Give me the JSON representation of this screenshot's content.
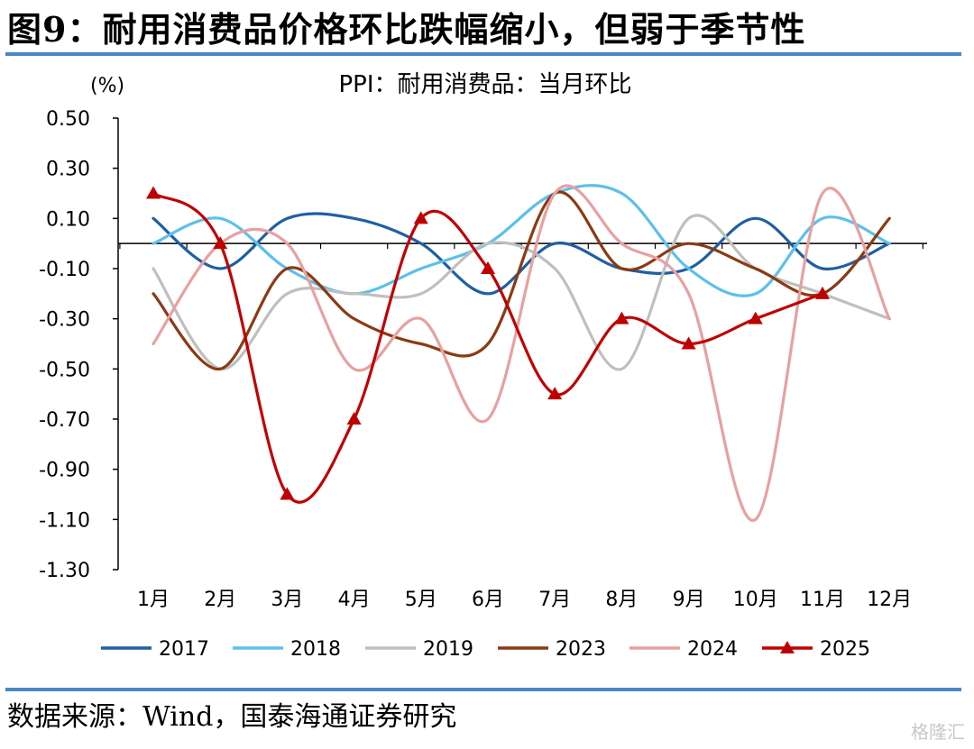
{
  "header": {
    "figure_title": "图9：耐用消费品价格环比跌幅缩小，但弱于季节性"
  },
  "footer": {
    "source": "数据来源：Wind，国泰海通证券研究",
    "watermark": "格隆汇"
  },
  "chart_data": {
    "type": "line",
    "title": "PPI：耐用消费品：当月环比",
    "unit_label": "(%)",
    "categories": [
      "1月",
      "2月",
      "3月",
      "4月",
      "5月",
      "6月",
      "7月",
      "8月",
      "9月",
      "10月",
      "11月",
      "12月"
    ],
    "ylim": [
      -1.3,
      0.5
    ],
    "yticks": [
      0.5,
      0.3,
      0.1,
      -0.1,
      -0.3,
      -0.5,
      -0.7,
      -0.9,
      -1.1,
      -1.3
    ],
    "ytick_labels": [
      "0.50",
      "0.30",
      "0.10",
      "-0.10",
      "-0.30",
      "-0.50",
      "-0.70",
      "-0.90",
      "-1.10",
      "-1.30"
    ],
    "grid": false,
    "legend_position": "bottom",
    "series": [
      {
        "name": "2017",
        "color": "#1f5fa3",
        "marker": "none",
        "values": [
          0.1,
          -0.1,
          0.1,
          0.1,
          0.0,
          -0.2,
          0.0,
          -0.1,
          -0.1,
          0.1,
          -0.1,
          0.0
        ]
      },
      {
        "name": "2018",
        "color": "#5bc0eb",
        "marker": "none",
        "values": [
          0.0,
          0.1,
          -0.1,
          -0.2,
          -0.1,
          0.0,
          0.2,
          0.2,
          -0.1,
          -0.2,
          0.1,
          0.0
        ]
      },
      {
        "name": "2019",
        "color": "#bfbfbf",
        "marker": "none",
        "values": [
          -0.1,
          -0.5,
          -0.2,
          -0.2,
          -0.2,
          0.0,
          -0.1,
          -0.5,
          0.1,
          -0.1,
          -0.2,
          -0.3
        ]
      },
      {
        "name": "2023",
        "color": "#8b3a13",
        "marker": "none",
        "values": [
          -0.2,
          -0.5,
          -0.1,
          -0.3,
          -0.4,
          -0.4,
          0.2,
          -0.1,
          0.0,
          -0.1,
          -0.2,
          0.1
        ]
      },
      {
        "name": "2024",
        "color": "#e8a0a0",
        "marker": "none",
        "values": [
          -0.4,
          0.0,
          0.0,
          -0.5,
          -0.3,
          -0.7,
          0.2,
          0.0,
          -0.2,
          -1.1,
          0.2,
          -0.3
        ]
      },
      {
        "name": "2025",
        "color": "#c00000",
        "marker": "triangle",
        "values": [
          0.2,
          0.0,
          -1.0,
          -0.7,
          0.1,
          -0.1,
          -0.6,
          -0.3,
          -0.4,
          -0.3,
          -0.2,
          null
        ]
      }
    ]
  }
}
